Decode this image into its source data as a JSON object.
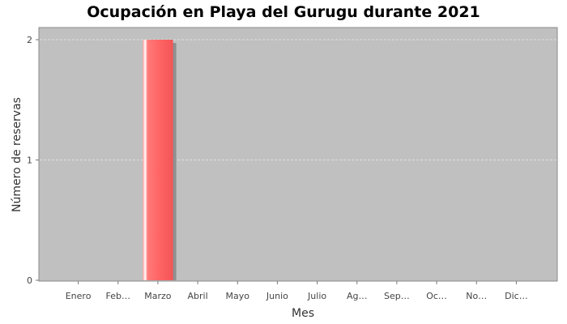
{
  "chart_data": {
    "type": "bar",
    "title": "Ocupación en Playa del Gurugu durante 2021",
    "xlabel": "Mes",
    "ylabel": "Número de reservas",
    "categories": [
      "Enero",
      "Feb…",
      "Marzo",
      "Abril",
      "Mayo",
      "Junio",
      "Julio",
      "Ag…",
      "Sep…",
      "Oc…",
      "No…",
      "Dic…"
    ],
    "values": [
      0,
      0,
      2,
      0,
      0,
      0,
      0,
      0,
      0,
      0,
      0,
      0
    ],
    "ylim": [
      0,
      2
    ],
    "yticks": [
      "0",
      "1",
      "2"
    ],
    "grid": true,
    "colors": {
      "plot_background": "#c0c0c0",
      "bar": "#ff6666",
      "gridline": "#e8e8e8"
    }
  }
}
